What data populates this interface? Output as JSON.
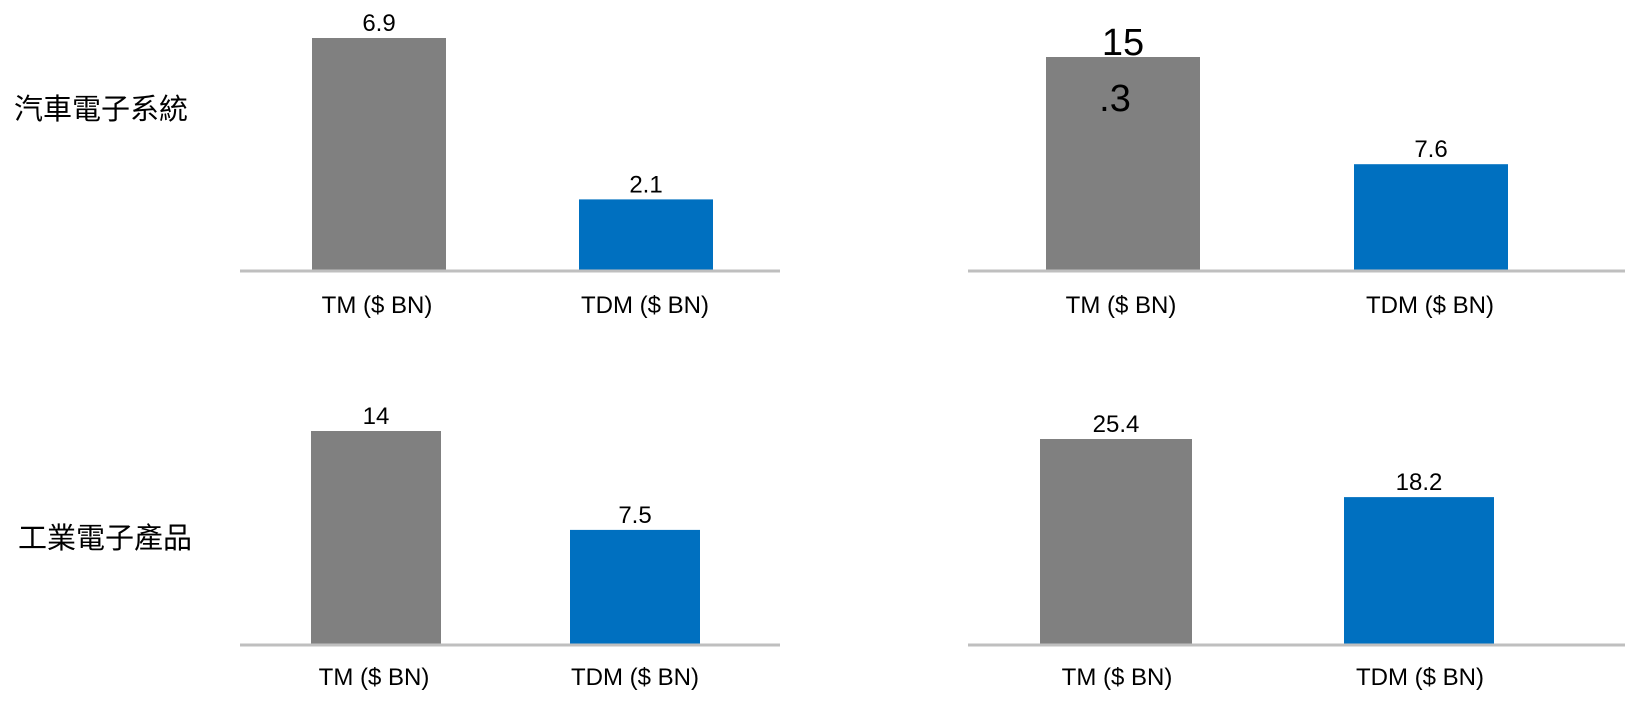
{
  "row_labels": [
    "汽車電子系統",
    "工業電子產品"
  ],
  "colors": {
    "gray": "#808080",
    "blue": "#0070C0",
    "baseline": "#BFBFBF",
    "text": "#000000"
  },
  "chart_data": [
    {
      "type": "bar",
      "categories": [
        "TM ($ BN)",
        "TDM ($ BN)"
      ],
      "values": [
        6.9,
        2.1
      ],
      "value_labels": [
        "6.9",
        "2.1"
      ]
    },
    {
      "type": "bar",
      "categories": [
        "TM ($ BN)",
        "TDM ($ BN)"
      ],
      "values": [
        15.3,
        7.6
      ],
      "value_labels": [
        "15\n.3",
        "7.6"
      ]
    },
    {
      "type": "bar",
      "categories": [
        "TM ($ BN)",
        "TDM ($ BN)"
      ],
      "values": [
        14,
        7.5
      ],
      "value_labels": [
        "14",
        "7.5"
      ]
    },
    {
      "type": "bar",
      "categories": [
        "TM ($ BN)",
        "TDM ($ BN)"
      ],
      "values": [
        25.4,
        18.2
      ],
      "value_labels": [
        "25.4",
        "18.2"
      ]
    }
  ]
}
